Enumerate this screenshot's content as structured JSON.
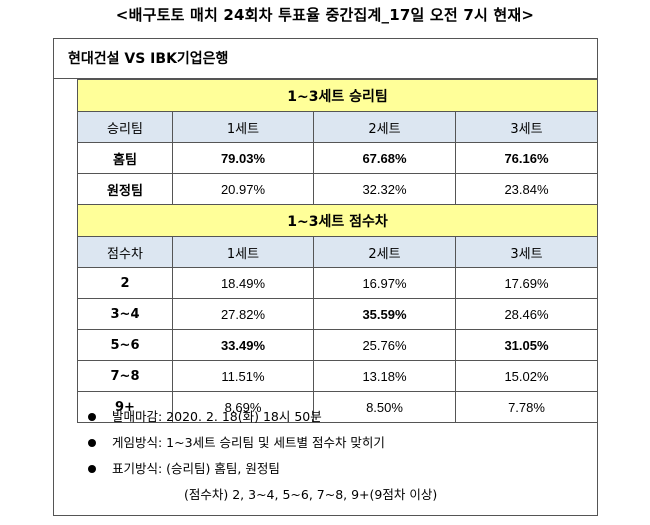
{
  "page_title": "<배구토토 매치 24회차 투표율 중간집계_17일 오전 7시 현재>",
  "match": "현대건설 VS IBK기업은행",
  "section1": {
    "title": "1~3세트 승리팀",
    "headers": [
      "승리팀",
      "1세트",
      "2세트",
      "3세트"
    ],
    "rows": [
      {
        "label": "홈팀",
        "values": [
          "79.03%",
          "67.68%",
          "76.16%"
        ],
        "bold": [
          true,
          true,
          true
        ]
      },
      {
        "label": "원정팀",
        "values": [
          "20.97%",
          "32.32%",
          "23.84%"
        ],
        "bold": [
          false,
          false,
          false
        ]
      }
    ]
  },
  "section2": {
    "title": "1~3세트 점수차",
    "headers": [
      "점수차",
      "1세트",
      "2세트",
      "3세트"
    ],
    "rows": [
      {
        "label": "2",
        "values": [
          "18.49%",
          "16.97%",
          "17.69%"
        ],
        "bold": [
          false,
          false,
          false
        ]
      },
      {
        "label": "3~4",
        "values": [
          "27.82%",
          "35.59%",
          "28.46%"
        ],
        "bold": [
          false,
          true,
          false
        ]
      },
      {
        "label": "5~6",
        "values": [
          "33.49%",
          "25.76%",
          "31.05%"
        ],
        "bold": [
          true,
          false,
          true
        ]
      },
      {
        "label": "7~8",
        "values": [
          "11.51%",
          "13.18%",
          "15.02%"
        ],
        "bold": [
          false,
          false,
          false
        ]
      },
      {
        "label": "9+",
        "values": [
          "8.69%",
          "8.50%",
          "7.78%"
        ],
        "bold": [
          false,
          false,
          false
        ]
      }
    ]
  },
  "notes": [
    "발매마감: 2020. 2. 18(화) 18시 50분",
    "게임방식: 1~3세트 승리팀 및 세트별 점수차 맞히기",
    "표기방식: (승리팀) 홈팀, 원정팀"
  ],
  "note_continuation": "(점수차) 2, 3~4, 5~6, 7~8, 9+(9점차 이상)"
}
